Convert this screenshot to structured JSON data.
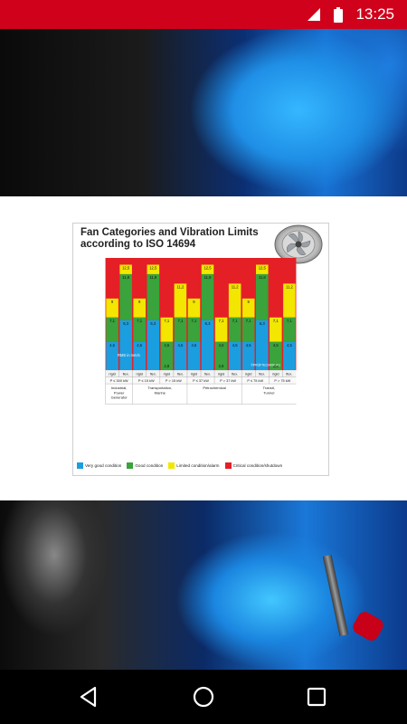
{
  "status": {
    "time": "13:25"
  },
  "card": {
    "title_line1": "Fan Categories and Vibration Limits",
    "title_line2": "according to ISO 14694"
  },
  "chart_data": {
    "type": "bar",
    "unit_label": "RMS in mm/s",
    "copyright": "©PRÜFTECHNIK AG",
    "colors": {
      "very_good": "#1b9ee0",
      "good": "#3aa33b",
      "limited": "#f3e600",
      "critical": "#e41f26"
    },
    "columns": [
      {
        "mount": "rigid",
        "very_good": 4.5,
        "good": 7.1,
        "limited": 9.0
      },
      {
        "mount": "flex.",
        "very_good": 6.3,
        "good": 11.8,
        "limited": 12.5
      },
      {
        "mount": "rigid",
        "very_good": 4.5,
        "good": 7.1,
        "limited": 9.0
      },
      {
        "mount": "flex.",
        "very_good": 6.3,
        "good": 11.8,
        "limited": 12.5
      },
      {
        "mount": "rigid",
        "very_good": 2.8,
        "good": 4.5,
        "limited": 7.1
      },
      {
        "mount": "flex.",
        "very_good": 4.5,
        "good": 7.1,
        "limited": 11.2
      },
      {
        "mount": "rigid",
        "very_good": 4.5,
        "good": 7.1,
        "limited": 9.0
      },
      {
        "mount": "flex.",
        "very_good": 6.3,
        "good": 11.8,
        "limited": 12.5
      },
      {
        "mount": "rigid",
        "very_good": 2.8,
        "good": 4.5,
        "limited": 7.1
      },
      {
        "mount": "flex.",
        "very_good": 4.5,
        "good": 7.1,
        "limited": 11.2
      },
      {
        "mount": "rigid",
        "very_good": 4.5,
        "good": 7.1,
        "limited": 9.0
      },
      {
        "mount": "flex.",
        "very_good": 6.3,
        "good": 11.8,
        "limited": 12.5
      },
      {
        "mount": "rigid",
        "very_good": 2.8,
        "good": 4.5,
        "limited": 7.1
      },
      {
        "mount": "flex.",
        "very_good": 4.5,
        "good": 7.1,
        "limited": 11.2
      }
    ],
    "power_labels": [
      "P ≤ 300 kW",
      "P ≤ 15 kW",
      "P > 15 kW",
      "P ≤ 37 kW",
      "P > 37 kW",
      "P ≤ 75 kW",
      "P > 75 kW"
    ],
    "categories": [
      {
        "label_lines": [
          "Industrial,",
          "Power",
          "Generator"
        ],
        "span": 2
      },
      {
        "label_lines": [
          "Transportation,",
          "Marine"
        ],
        "span": 4
      },
      {
        "label_lines": [
          "Petrochemical"
        ],
        "span": 4
      },
      {
        "label_lines": [
          "Transit,",
          "Tunnel"
        ],
        "span": 4
      }
    ],
    "legend": [
      {
        "label": "Very good condition",
        "key": "very_good"
      },
      {
        "label": "Good condition",
        "key": "good"
      },
      {
        "label": "Limited condition/alarm",
        "key": "limited"
      },
      {
        "label": "Critical condition/shutdown",
        "key": "critical"
      }
    ]
  }
}
